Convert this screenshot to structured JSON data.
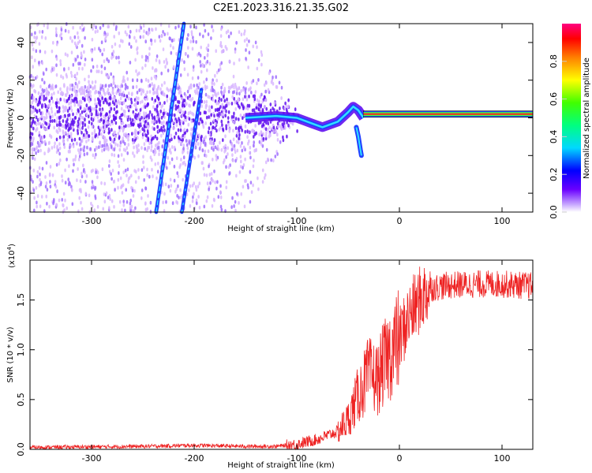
{
  "title": "C2E1.2023.316.21.35.G02",
  "colors": {
    "snr_line": "#ee2222",
    "dot_light": "#d9b8ff",
    "dot_mid": "#a070ff",
    "dot_dark": "#6010f0",
    "ridge_cyan": "#30e0ff",
    "ridge_blue": "#2040ff",
    "band_red": "#ff2020",
    "band_green": "#40ff40"
  },
  "chart_data": [
    {
      "type": "heatmap",
      "xlabel": "Height of straight line (km)",
      "ylabel": "Frequency (Hz)",
      "xlim": [
        -360,
        130
      ],
      "ylim": [
        -50,
        50
      ],
      "x_ticks": [
        -300,
        -200,
        -100,
        0,
        100
      ],
      "x_tick_labels": [
        "-300",
        "-200",
        "-100",
        "0",
        "100"
      ],
      "y_ticks": [
        -40,
        -20,
        0,
        20,
        40
      ],
      "y_tick_labels": [
        "-40",
        "-20",
        "0",
        "20",
        "40"
      ],
      "colorbar": {
        "label": "Normalized spectral amplitude",
        "range": [
          0,
          1
        ],
        "ticks": [
          0,
          0.2,
          0.4,
          0.6,
          0.8
        ],
        "tick_labels": [
          "0.0",
          "0.2",
          "0.4",
          "0.6",
          "0.8"
        ],
        "colormap": "rainbow"
      },
      "features": {
        "dispersive_line": {
          "x_start": -237,
          "y_start": -50,
          "x_end": -210,
          "y_end": 50
        },
        "second_line": {
          "x_start": -212,
          "y_start": -50,
          "x_end": -193,
          "y_end": 15
        },
        "tone_ridge": [
          [
            -150,
            0
          ],
          [
            -120,
            1
          ],
          [
            -100,
            0
          ],
          [
            -85,
            -3
          ],
          [
            -75,
            -5
          ],
          [
            -60,
            -2
          ],
          [
            -50,
            3
          ],
          [
            -45,
            6
          ],
          [
            -40,
            4
          ],
          [
            -35,
            0
          ]
        ],
        "drop_branch": [
          [
            -42,
            -5
          ],
          [
            -40,
            -10
          ],
          [
            -38,
            -17
          ],
          [
            -37,
            -20
          ]
        ],
        "carrier_band": {
          "x_start": -35,
          "x_end": 130,
          "y": 2
        }
      },
      "grid": false
    },
    {
      "type": "line",
      "xlabel": "Height of straight line (km)",
      "ylabel": "SNR (10 * v/v)",
      "scale_note": "(x10",
      "scale_exp": "4",
      "scale_close": ")",
      "xlim": [
        -360,
        130
      ],
      "ylim": [
        0,
        1.9
      ],
      "x_ticks": [
        -300,
        -200,
        -100,
        0,
        100
      ],
      "x_tick_labels": [
        "-300",
        "-200",
        "-100",
        "0",
        "100"
      ],
      "y_ticks": [
        0,
        0.5,
        1.0,
        1.5
      ],
      "y_tick_labels": [
        "0.0",
        "0.5",
        "1.0",
        "1.5"
      ],
      "series_profile": [
        [
          -360,
          0.02
        ],
        [
          -250,
          0.03
        ],
        [
          -200,
          0.04
        ],
        [
          -150,
          0.03
        ],
        [
          -120,
          0.03
        ],
        [
          -100,
          0.05
        ],
        [
          -80,
          0.1
        ],
        [
          -60,
          0.18
        ],
        [
          -50,
          0.3
        ],
        [
          -40,
          0.55
        ],
        [
          -30,
          0.75
        ],
        [
          -20,
          0.7
        ],
        [
          -18,
          0.8
        ],
        [
          -10,
          0.95
        ],
        [
          0,
          1.1
        ],
        [
          10,
          1.35
        ],
        [
          20,
          1.5
        ],
        [
          30,
          1.62
        ],
        [
          50,
          1.65
        ],
        [
          80,
          1.66
        ],
        [
          100,
          1.66
        ],
        [
          130,
          1.64
        ]
      ],
      "grid": false
    }
  ]
}
